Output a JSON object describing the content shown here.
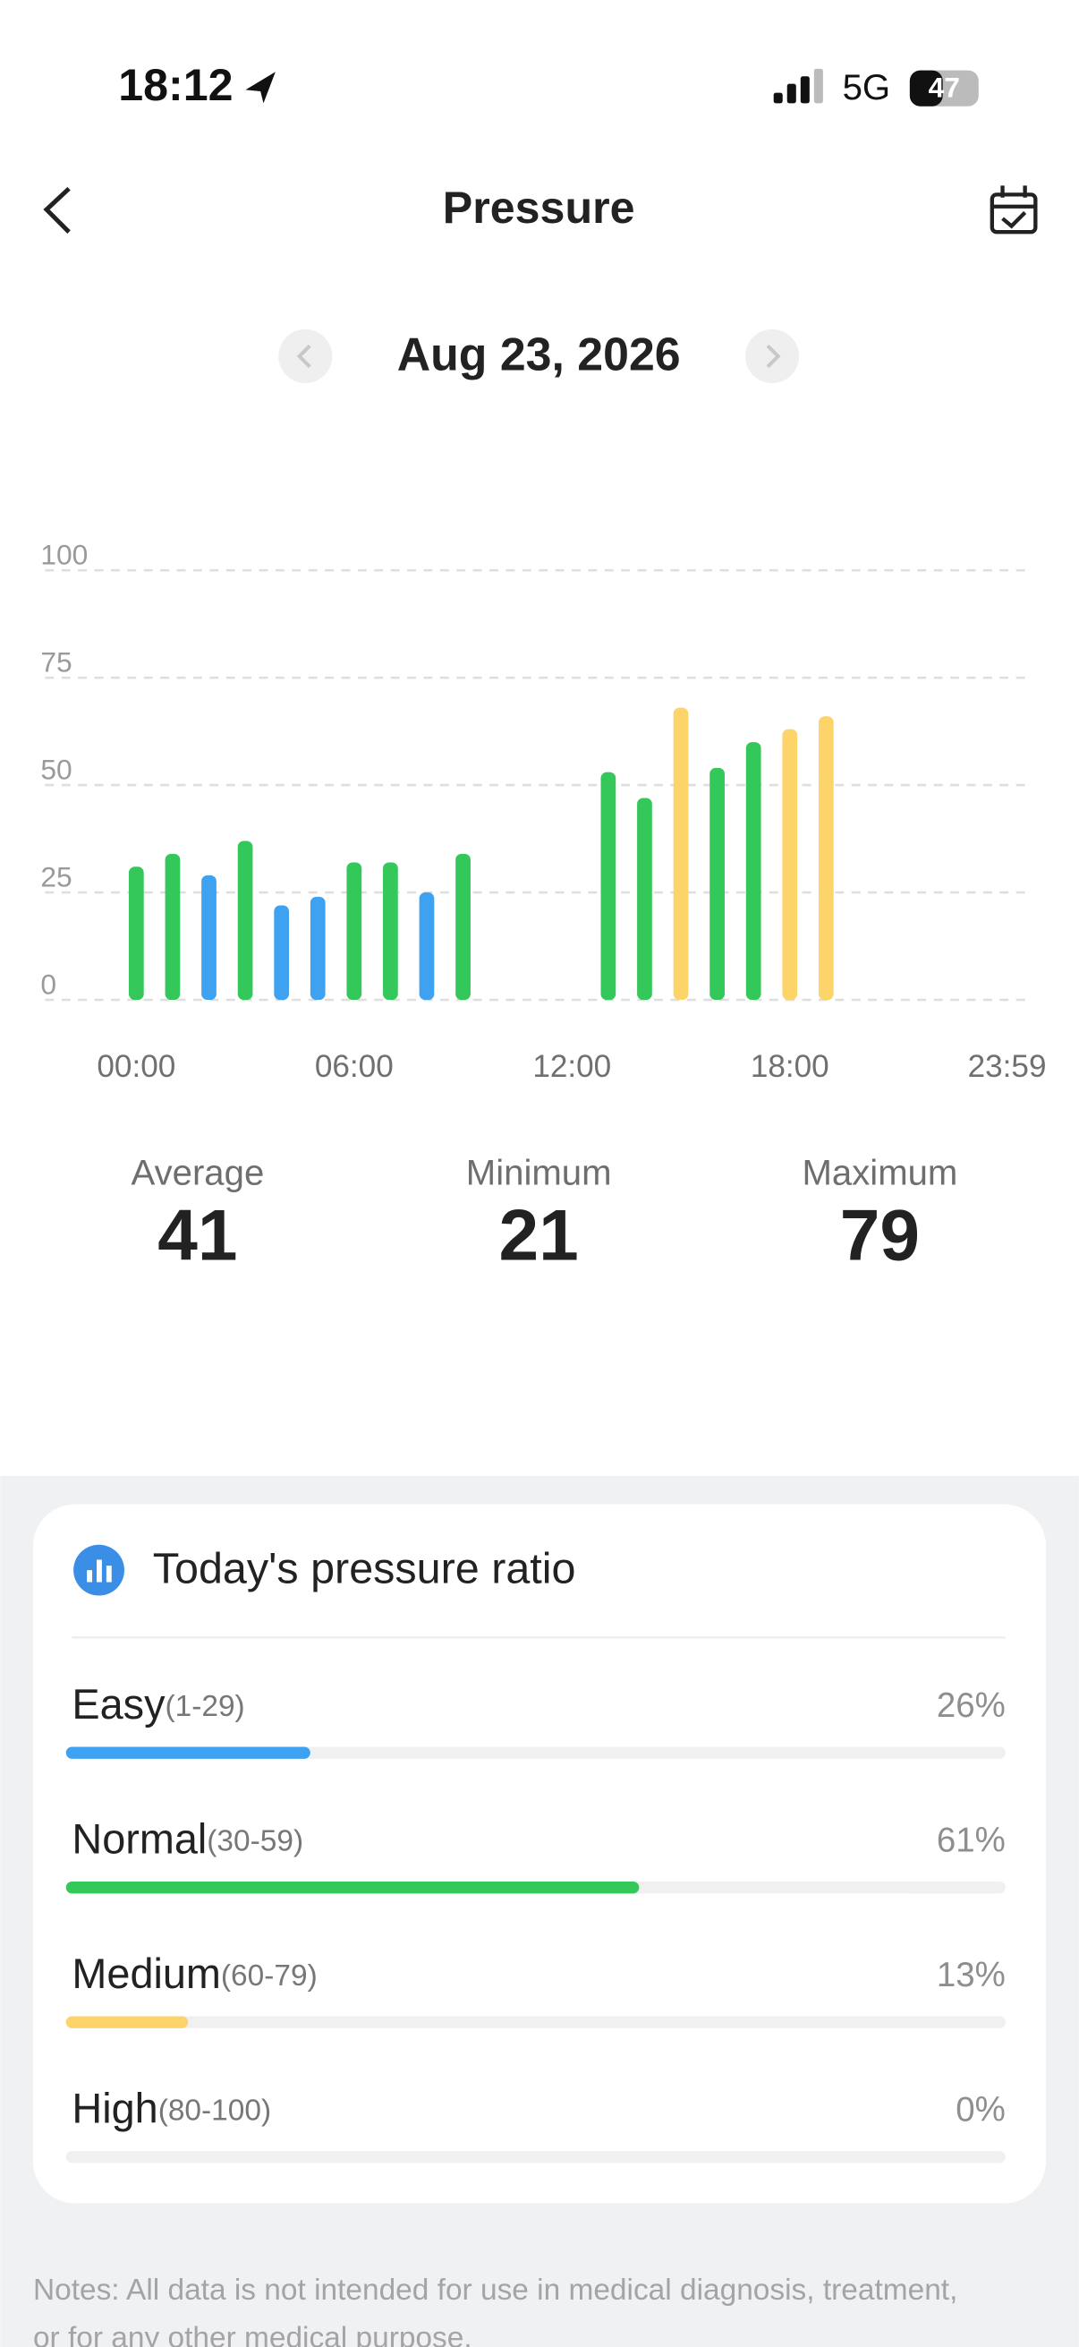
{
  "status_bar": {
    "time": "18:12",
    "network": "5G",
    "battery": "47"
  },
  "header": {
    "title": "Pressure",
    "date": "Aug 23, 2026"
  },
  "chart_data": {
    "type": "bar",
    "x": [
      0,
      60,
      120,
      180,
      240,
      300,
      360,
      420,
      480,
      540,
      780,
      840,
      900,
      960,
      1020,
      1080,
      1140
    ],
    "values": [
      31,
      34,
      29,
      37,
      22,
      24,
      32,
      32,
      25,
      34,
      53,
      47,
      68,
      54,
      60,
      63,
      66
    ],
    "colors": [
      "#34c759",
      "#34c759",
      "#3fa2f0",
      "#34c759",
      "#3fa2f0",
      "#3fa2f0",
      "#34c759",
      "#34c759",
      "#3fa2f0",
      "#34c759",
      "#34c759",
      "#34c759",
      "#fcd46a",
      "#34c759",
      "#34c759",
      "#fcd46a",
      "#fcd46a"
    ],
    "xlim": [
      0,
      1439
    ],
    "xticks": [
      {
        "value": 0,
        "label": "00:00"
      },
      {
        "value": 360,
        "label": "06:00"
      },
      {
        "value": 720,
        "label": "12:00"
      },
      {
        "value": 1080,
        "label": "18:00"
      },
      {
        "value": 1439,
        "label": "23:59"
      }
    ],
    "ylim": [
      0,
      100
    ],
    "yticks": [
      0,
      25,
      50,
      75,
      100
    ],
    "grid": true
  },
  "stats": [
    {
      "label": "Average",
      "value": 41
    },
    {
      "label": "Minimum",
      "value": 21
    },
    {
      "label": "Maximum",
      "value": 79
    }
  ],
  "ratio": {
    "title": "Today's pressure ratio",
    "items": [
      {
        "name": "Easy",
        "range": "(1-29)",
        "value": 26,
        "value_label": "26%",
        "color": "#3fa2f0"
      },
      {
        "name": "Normal",
        "range": "(30-59)",
        "value": 61,
        "value_label": "61%",
        "color": "#34c759"
      },
      {
        "name": "Medium",
        "range": "(60-79)",
        "value": 13,
        "value_label": "13%",
        "color": "#fcd46a"
      },
      {
        "name": "High",
        "range": "(80-100)",
        "value": 0,
        "value_label": "0%",
        "color": "#ff5a4f"
      }
    ]
  },
  "notes": [
    "Notes: All data is not intended for use in medical diagnosis, treatment,",
    "or for any other medical purpose."
  ]
}
